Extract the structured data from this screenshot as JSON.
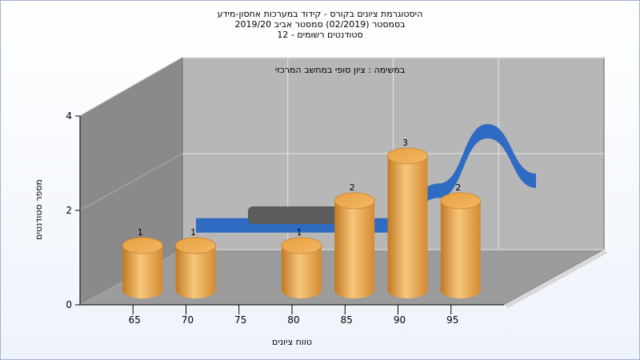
{
  "chart_data": {
    "type": "bar",
    "title_lines": [
      "היסטוגרמת ציונים בקורס - קידוד במערכות אחסון-מידע",
      "בסמסטר  (02/2019)  סמסטר אביב 2019/20",
      "סטודנטים רשומים - 12"
    ],
    "annotation": "במשימה : ציון סופי במחשב המרכזי",
    "xlabel": "טווח ציונים",
    "ylabel": "מספר סטודנטים",
    "x_ticks": [
      "65",
      "70",
      "75",
      "80",
      "85",
      "90",
      "95"
    ],
    "y_ticks": [
      "0",
      "2",
      "4"
    ],
    "ylim": [
      0,
      4
    ],
    "grid": true,
    "bars": {
      "categories": [
        "65",
        "70",
        "80",
        "85",
        "90",
        "95"
      ],
      "values": [
        1,
        1,
        1,
        2,
        3,
        2
      ],
      "labels": [
        "1",
        "1",
        "1",
        "2",
        "3",
        "2"
      ],
      "color": "#e6a24a"
    },
    "curve": {
      "x": [
        65,
        70,
        75,
        80,
        85,
        90,
        95,
        100
      ],
      "y": [
        0.1,
        0.1,
        0.1,
        0.1,
        0.1,
        0.8,
        2.0,
        1.0
      ],
      "color_front": "#2f6bc2",
      "color_back": "#5c5c5c"
    },
    "colors": {
      "back_wall": "#b7b7b7",
      "side_wall": "#8a8a8a",
      "floor": "#9c9c9c"
    }
  }
}
